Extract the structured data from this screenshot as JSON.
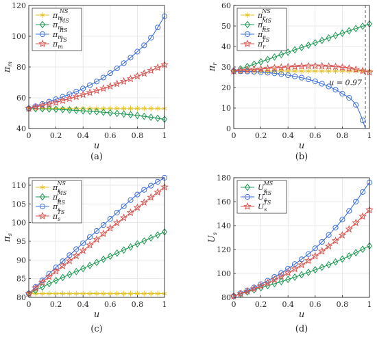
{
  "chart_data": [
    {
      "type": "line",
      "caption": "(a)",
      "ylabel": "π_m",
      "xlabel": "u",
      "xlim": [
        0,
        1
      ],
      "ylim": [
        40,
        120
      ],
      "xticks": [
        "0",
        "0.2",
        "0.4",
        "0.6",
        "0.8",
        "1"
      ],
      "yticks": [
        "40",
        "60",
        "80",
        "100",
        "120"
      ],
      "grid": true,
      "legend": "top-left",
      "series": [
        {
          "name": "π_m^NS",
          "color": "#e6c229",
          "marker": "star6",
          "points": [
            [
              0,
              53
            ],
            [
              0.2,
              53
            ],
            [
              0.4,
              53
            ],
            [
              0.6,
              53
            ],
            [
              0.8,
              53
            ],
            [
              1,
              53
            ]
          ]
        },
        {
          "name": "π_m^MS",
          "color": "#1a9850",
          "marker": "diamond",
          "points": [
            [
              0,
              53
            ],
            [
              0.2,
              52.5
            ],
            [
              0.4,
              51.5
            ],
            [
              0.6,
              50.2
            ],
            [
              0.8,
              48.5
            ],
            [
              1,
              46
            ]
          ]
        },
        {
          "name": "π_m^RS",
          "color": "#3c6fd9",
          "marker": "circle",
          "points": [
            [
              0,
              53
            ],
            [
              0.2,
              59
            ],
            [
              0.4,
              66
            ],
            [
              0.6,
              76
            ],
            [
              0.8,
              90
            ],
            [
              0.9,
              99
            ],
            [
              1,
              113
            ]
          ]
        },
        {
          "name": "π_m^TS",
          "color": "#d9534f",
          "marker": "star5",
          "points": [
            [
              0,
              53
            ],
            [
              0.2,
              57
            ],
            [
              0.4,
              62
            ],
            [
              0.6,
              67.5
            ],
            [
              0.8,
              74
            ],
            [
              1,
              81.5
            ]
          ]
        }
      ]
    },
    {
      "type": "line",
      "caption": "(b)",
      "ylabel": "π_r",
      "xlabel": "u",
      "xlim": [
        0,
        1
      ],
      "ylim": [
        0,
        60
      ],
      "xticks": [
        "0",
        "0.2",
        "0.4",
        "0.6",
        "0.8",
        "1"
      ],
      "yticks": [
        "0",
        "10",
        "20",
        "30",
        "40",
        "50",
        "60"
      ],
      "grid": true,
      "legend": "top-left",
      "annotation": "u = 0.97",
      "vline_x": 0.97,
      "series": [
        {
          "name": "π_r^NS",
          "color": "#e6c229",
          "marker": "star6",
          "points": [
            [
              0,
              28
            ],
            [
              0.2,
              28
            ],
            [
              0.4,
              28
            ],
            [
              0.6,
              28
            ],
            [
              0.8,
              28
            ],
            [
              1,
              28
            ]
          ]
        },
        {
          "name": "π_r^MS",
          "color": "#1a9850",
          "marker": "diamond",
          "points": [
            [
              0,
              28
            ],
            [
              0.2,
              32.5
            ],
            [
              0.4,
              37.2
            ],
            [
              0.6,
              41.8
            ],
            [
              0.8,
              46.5
            ],
            [
              1,
              51
            ]
          ]
        },
        {
          "name": "π_r^RS",
          "color": "#3c6fd9",
          "marker": "circle",
          "points": [
            [
              0,
              28
            ],
            [
              0.2,
              27.5
            ],
            [
              0.4,
              26
            ],
            [
              0.6,
              23
            ],
            [
              0.8,
              17
            ],
            [
              0.9,
              11.5
            ],
            [
              0.95,
              4
            ],
            [
              0.97,
              0
            ]
          ]
        },
        {
          "name": "π_r^TS",
          "color": "#d9534f",
          "marker": "star5",
          "points": [
            [
              0,
              28
            ],
            [
              0.2,
              29
            ],
            [
              0.4,
              30
            ],
            [
              0.6,
              30.5
            ],
            [
              0.8,
              29.8
            ],
            [
              1,
              27.5
            ]
          ]
        }
      ]
    },
    {
      "type": "line",
      "caption": "(c)",
      "ylabel": "π_s",
      "xlabel": "u",
      "xlim": [
        0,
        1
      ],
      "ylim": [
        80,
        112
      ],
      "xticks": [
        "0",
        "0.2",
        "0.4",
        "0.6",
        "0.8",
        "1"
      ],
      "yticks": [
        "80",
        "85",
        "90",
        "95",
        "100",
        "105",
        "110"
      ],
      "grid": true,
      "legend": "top-left",
      "series": [
        {
          "name": "π_s^NS",
          "color": "#e6c229",
          "marker": "star6",
          "points": [
            [
              0,
              81
            ],
            [
              0.2,
              81
            ],
            [
              0.4,
              81
            ],
            [
              0.6,
              81
            ],
            [
              0.8,
              81
            ],
            [
              1,
              81
            ]
          ]
        },
        {
          "name": "π_s^MS",
          "color": "#1a9850",
          "marker": "diamond",
          "points": [
            [
              0,
              81
            ],
            [
              0.2,
              84.5
            ],
            [
              0.4,
              87.7
            ],
            [
              0.6,
              91
            ],
            [
              0.8,
              94.3
            ],
            [
              1,
              97.5
            ]
          ]
        },
        {
          "name": "π_s^RS",
          "color": "#3c6fd9",
          "marker": "circle",
          "points": [
            [
              0,
              81
            ],
            [
              0.2,
              88
            ],
            [
              0.4,
              94.5
            ],
            [
              0.6,
              101
            ],
            [
              0.8,
              107.5
            ],
            [
              1,
              112
            ]
          ]
        },
        {
          "name": "π_s^TS",
          "color": "#d9534f",
          "marker": "star5",
          "points": [
            [
              0,
              81
            ],
            [
              0.2,
              87
            ],
            [
              0.4,
              92.5
            ],
            [
              0.6,
              98.5
            ],
            [
              0.8,
              104
            ],
            [
              1,
              109.5
            ]
          ]
        }
      ]
    },
    {
      "type": "line",
      "caption": "(d)",
      "ylabel": "U_s",
      "xlabel": "u",
      "xlim": [
        0,
        1
      ],
      "ylim": [
        80,
        180
      ],
      "xticks": [
        "0",
        "0.2",
        "0.4",
        "0.6",
        "0.8",
        "1"
      ],
      "yticks": [
        "80",
        "100",
        "120",
        "140",
        "160",
        "180"
      ],
      "grid": true,
      "legend": "top-left",
      "series": [
        {
          "name": "U_s^MS",
          "color": "#1a9850",
          "marker": "diamond",
          "points": [
            [
              0,
              81
            ],
            [
              0.2,
              88
            ],
            [
              0.4,
              95
            ],
            [
              0.6,
              103
            ],
            [
              0.8,
              112
            ],
            [
              1,
              123
            ]
          ]
        },
        {
          "name": "U_s^RS",
          "color": "#3c6fd9",
          "marker": "circle",
          "points": [
            [
              0,
              81
            ],
            [
              0.2,
              91
            ],
            [
              0.4,
              104
            ],
            [
              0.6,
              121
            ],
            [
              0.8,
              145
            ],
            [
              1,
              176
            ]
          ]
        },
        {
          "name": "U_s^TS",
          "color": "#d9534f",
          "marker": "star5",
          "points": [
            [
              0,
              81
            ],
            [
              0.2,
              89.5
            ],
            [
              0.4,
              100.5
            ],
            [
              0.6,
              114.5
            ],
            [
              0.8,
              132
            ],
            [
              1,
              153
            ]
          ]
        }
      ]
    }
  ]
}
